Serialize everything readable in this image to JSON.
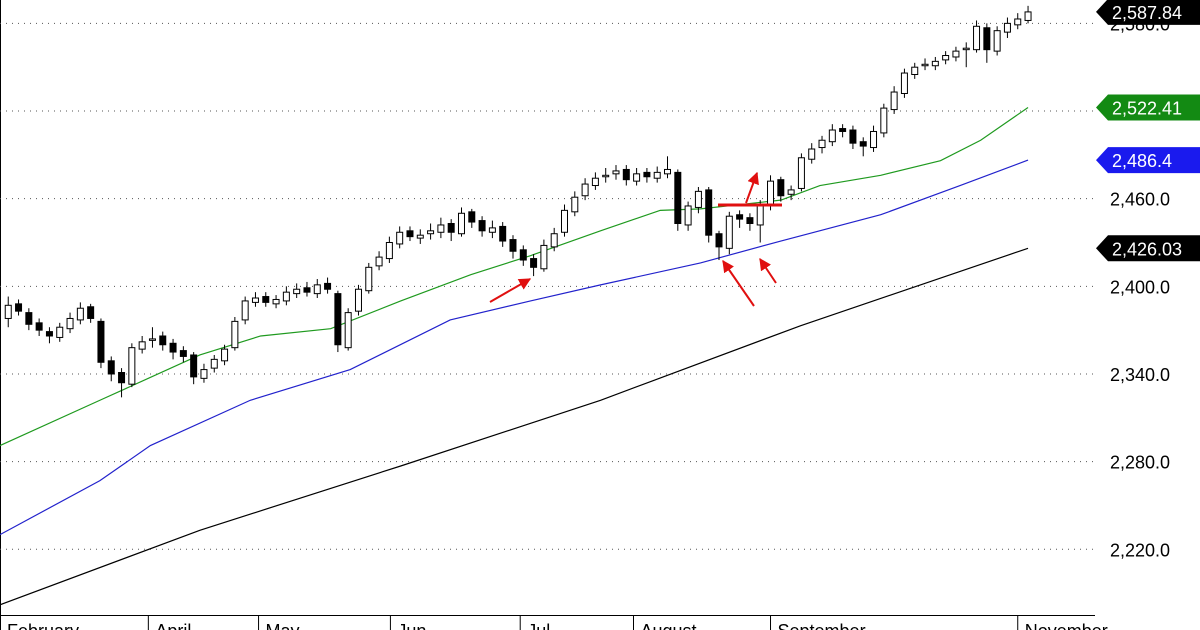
{
  "chart_data": {
    "type": "candlestick",
    "xlim": [
      -0.8,
      105.5
    ],
    "ylim": [
      2175,
      2596
    ],
    "grid": true,
    "yticks": [
      {
        "value": 2220,
        "label": "2,220.0"
      },
      {
        "value": 2280,
        "label": "2,280.0"
      },
      {
        "value": 2340,
        "label": "2,340.0"
      },
      {
        "value": 2400,
        "label": "2,400.0"
      },
      {
        "value": 2460,
        "label": "2,460.0"
      },
      {
        "value": 2520,
        "label": "2,520.0"
      },
      {
        "value": 2580,
        "label": "2,580.0"
      }
    ],
    "xticks": [
      {
        "value": -0.8,
        "label": "February"
      },
      {
        "value": 13.6,
        "label": "April"
      },
      {
        "value": 24.3,
        "label": "May"
      },
      {
        "value": 37.1,
        "label": "Jun"
      },
      {
        "value": 49.7,
        "label": "Jul"
      },
      {
        "value": 60.7,
        "label": "August"
      },
      {
        "value": 74,
        "label": "September"
      },
      {
        "value": 98,
        "label": "November"
      }
    ],
    "candles": {
      "color": "#000000",
      "last_label": "2,587.84",
      "open": [
        2378,
        2388,
        2382,
        2375,
        2369,
        2365,
        2371,
        2377,
        2386,
        2376,
        2349,
        2341,
        2333,
        2357,
        2363,
        2366,
        2361,
        2356,
        2353,
        2337,
        2344,
        2349,
        2358,
        2377,
        2389,
        2393,
        2388,
        2390,
        2395,
        2399,
        2395,
        2402,
        2395,
        2358,
        2383,
        2397,
        2414,
        2419,
        2429,
        2438,
        2433,
        2436,
        2437,
        2443,
        2436,
        2451,
        2445,
        2437,
        2441,
        2432,
        2425,
        2419,
        2412,
        2427,
        2437,
        2451,
        2462,
        2469,
        2475,
        2477,
        2480,
        2472,
        2478,
        2474,
        2477,
        2478,
        2442,
        2454,
        2466,
        2436,
        2426,
        2449,
        2447,
        2442,
        2455,
        2473,
        2463,
        2467,
        2487,
        2495,
        2499,
        2508,
        2507,
        2499,
        2495,
        2505,
        2521,
        2532,
        2545,
        2551,
        2551,
        2555,
        2557,
        2562,
        2562,
        2577,
        2561,
        2574,
        2579,
        2582
      ],
      "high": [
        2393,
        2391,
        2385,
        2378,
        2372,
        2375,
        2382,
        2389,
        2388,
        2378,
        2352,
        2344,
        2361,
        2366,
        2372,
        2369,
        2364,
        2359,
        2355,
        2347,
        2353,
        2360,
        2379,
        2393,
        2396,
        2396,
        2394,
        2400,
        2402,
        2403,
        2405,
        2406,
        2397,
        2385,
        2401,
        2416,
        2424,
        2434,
        2441,
        2441,
        2439,
        2443,
        2447,
        2446,
        2454,
        2453,
        2448,
        2445,
        2444,
        2435,
        2428,
        2422,
        2432,
        2440,
        2456,
        2465,
        2474,
        2478,
        2481,
        2483,
        2483,
        2481,
        2481,
        2482,
        2489,
        2480,
        2458,
        2468,
        2468,
        2438,
        2451,
        2452,
        2450,
        2459,
        2476,
        2475,
        2469,
        2491,
        2498,
        2503,
        2511,
        2511,
        2510,
        2502,
        2510,
        2525,
        2537,
        2549,
        2553,
        2556,
        2557,
        2561,
        2564,
        2567,
        2582,
        2580,
        2578,
        2584,
        2587,
        2592
      ],
      "low": [
        2372,
        2380,
        2370,
        2366,
        2361,
        2362,
        2368,
        2374,
        2375,
        2344,
        2335,
        2324,
        2331,
        2354,
        2358,
        2356,
        2350,
        2348,
        2333,
        2334,
        2341,
        2346,
        2356,
        2374,
        2386,
        2386,
        2385,
        2387,
        2392,
        2393,
        2392,
        2395,
        2355,
        2356,
        2380,
        2395,
        2411,
        2416,
        2426,
        2431,
        2429,
        2432,
        2433,
        2431,
        2434,
        2440,
        2434,
        2433,
        2427,
        2419,
        2414,
        2407,
        2410,
        2424,
        2434,
        2448,
        2459,
        2466,
        2471,
        2473,
        2469,
        2469,
        2471,
        2471,
        2474,
        2438,
        2438,
        2450,
        2430,
        2418,
        2422,
        2440,
        2438,
        2430,
        2452,
        2458,
        2459,
        2465,
        2484,
        2491,
        2496,
        2502,
        2494,
        2489,
        2492,
        2502,
        2518,
        2529,
        2542,
        2548,
        2548,
        2552,
        2554,
        2550,
        2560,
        2553,
        2558,
        2570,
        2576,
        2580
      ],
      "close": [
        2387,
        2383,
        2374,
        2370,
        2366,
        2372,
        2378,
        2385,
        2378,
        2348,
        2340,
        2334,
        2358,
        2362,
        2364,
        2360,
        2355,
        2352,
        2338,
        2343,
        2350,
        2357,
        2376,
        2390,
        2392,
        2389,
        2391,
        2396,
        2398,
        2396,
        2401,
        2398,
        2360,
        2382,
        2398,
        2413,
        2420,
        2430,
        2437,
        2434,
        2435,
        2438,
        2442,
        2437,
        2450,
        2444,
        2438,
        2440,
        2431,
        2424,
        2418,
        2413,
        2428,
        2436,
        2452,
        2461,
        2470,
        2474,
        2476,
        2479,
        2473,
        2477,
        2475,
        2478,
        2480,
        2443,
        2455,
        2465,
        2435,
        2427,
        2448,
        2446,
        2443,
        2456,
        2472,
        2462,
        2466,
        2488,
        2494,
        2500,
        2507,
        2506,
        2498,
        2496,
        2506,
        2522,
        2533,
        2546,
        2550,
        2552,
        2554,
        2558,
        2561,
        2563,
        2578,
        2562,
        2575,
        2580,
        2583,
        2587.84
      ]
    },
    "series": [
      {
        "color": "#1f9a1f",
        "tag_color": "#138a13",
        "last_label": "2,522.41",
        "x": [
          -0.8,
          8.9,
          18.6,
          24.5,
          31.3,
          38.1,
          44.9,
          50.7,
          57.5,
          63.3,
          67.2,
          75,
          78.8,
          84.7,
          90.5,
          94.4,
          99
        ],
        "values": [
          2291,
          2322,
          2353,
          2366,
          2371,
          2390,
          2408,
          2421,
          2438,
          2452,
          2453,
          2459,
          2469,
          2476,
          2486,
          2500,
          2522.41
        ]
      },
      {
        "color": "#2222cc",
        "tag_color": "#1a1aee",
        "last_label": "2,486.4",
        "x": [
          -0.8,
          8.9,
          13.8,
          23.5,
          33.2,
          42.9,
          50.7,
          57.5,
          67.2,
          75,
          84.7,
          92.4,
          99
        ],
        "values": [
          2230,
          2267,
          2291,
          2322,
          2343,
          2377,
          2390,
          2401,
          2416,
          2431,
          2449,
          2469,
          2486.4
        ]
      },
      {
        "color": "#000000",
        "tag_color": "#000000",
        "last_label": "2,426.03",
        "x": [
          -0.8,
          18.6,
          38.1,
          57.5,
          76.9,
          99
        ],
        "values": [
          2182,
          2233,
          2277,
          2322,
          2373,
          2426.03
        ]
      }
    ]
  }
}
